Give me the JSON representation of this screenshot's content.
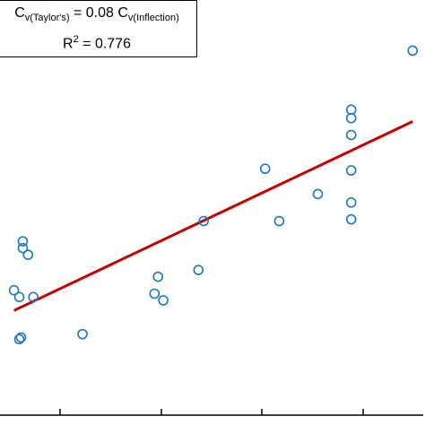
{
  "chart_data": {
    "type": "scatter",
    "xlim": [
      -2.6,
      21.6
    ],
    "ylim": [
      -4.4,
      20.2
    ],
    "grid": false,
    "legend": "top-left",
    "x_tick_count": 4,
    "annotation": {
      "eq_lhs": "C",
      "eq_lhs_sub": "v(Taylor's)",
      "eq_mid": " = 0.08 C",
      "eq_rhs_sub": "v(Inflection)",
      "r2_lhs": "R",
      "r2_sup": "2",
      "r2_rhs": " = 0.776"
    },
    "series": [
      {
        "marker": "open-circle",
        "color": "#1f77b4",
        "x": [
          -1.7,
          -1.4,
          -1.3,
          -1.4,
          -1.2,
          -1.2,
          -0.9,
          -0.6,
          2.2,
          6.3,
          6.5,
          6.8,
          8.8,
          9.1,
          12.6,
          13.4,
          15.6,
          17.5,
          17.5,
          17.5,
          17.5,
          17.5,
          17.5,
          21.0
        ],
        "y": [
          3.0,
          2.6,
          0.2,
          0.1,
          5.9,
          5.5,
          5.1,
          2.6,
          0.4,
          2.8,
          3.8,
          2.4,
          4.2,
          7.1,
          10.2,
          7.1,
          8.7,
          13.7,
          13.2,
          10.1,
          8.2,
          7.2,
          12.2,
          17.2
        ]
      },
      {
        "type": "line",
        "color": "#c00000",
        "x": [
          -1.7,
          21.0
        ],
        "y": [
          1.8,
          13.0
        ]
      }
    ]
  }
}
